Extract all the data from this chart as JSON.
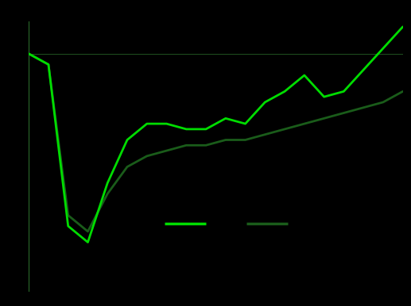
{
  "background_color": "#000000",
  "plot_bg_color": "#000000",
  "canada_color": "#00dd00",
  "us_color": "#1a5c1a",
  "axis_color": "#2a6a2a",
  "ylim": [
    78,
    103
  ],
  "xlim": [
    0,
    19
  ],
  "line_width": 2.0,
  "canada_data": [
    100,
    99,
    84,
    82.5,
    88,
    92,
    93.5,
    93.5,
    93,
    93,
    94,
    93.5,
    95.5,
    96.5,
    98,
    96,
    96.5,
    98.5,
    100.5,
    102.5
  ],
  "us_data": [
    100,
    99,
    85,
    83.5,
    87,
    89.5,
    90.5,
    91,
    91.5,
    91.5,
    92,
    92,
    92.5,
    93,
    93.5,
    94,
    94.5,
    95,
    95.5,
    96.5
  ]
}
